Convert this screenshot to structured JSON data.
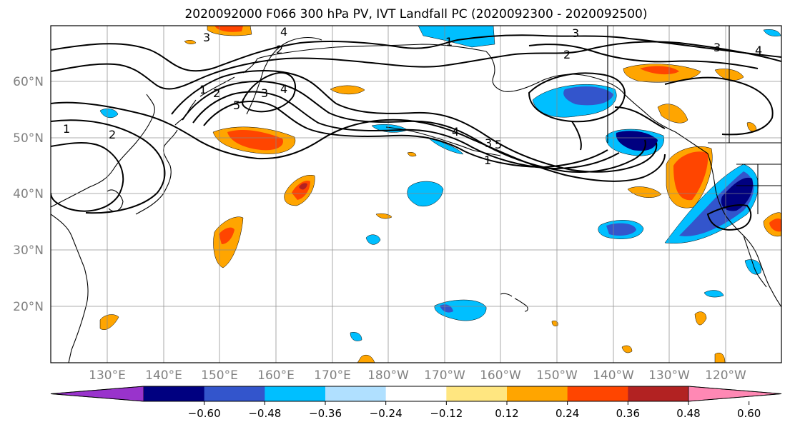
{
  "title": "2020092000 F066 300 hPa PV, IVT Landfall PC (2020092300 - 2020092500)",
  "lat_labels": [
    "60°N",
    "50°N",
    "40°N",
    "30°N",
    "20°N"
  ],
  "lon_labels": [
    "130°E",
    "140°E",
    "150°E",
    "160°E",
    "170°E",
    "180°W",
    "170°W",
    "160°W",
    "150°W",
    "140°W",
    "130°W",
    "120°W"
  ],
  "contour_labels": [
    "3",
    "4",
    "2",
    "1",
    "3",
    "2",
    "3",
    "4",
    "1",
    "2",
    "3",
    "4",
    "5",
    "2",
    "1",
    "3",
    "4",
    "5",
    "1"
  ],
  "colorbar": {
    "colors": [
      "#9933cc",
      "#000080",
      "#3355cc",
      "#00bfff",
      "#b0e0ff",
      "#ffffff",
      "#ffe680",
      "#ffa500",
      "#ff4500",
      "#b22222",
      "#ff88b4"
    ],
    "tick_labels": [
      "−0.60",
      "−0.48",
      "−0.36",
      "−0.24",
      "−0.12",
      "0.12",
      "0.24",
      "0.36",
      "0.48",
      "0.60"
    ]
  }
}
